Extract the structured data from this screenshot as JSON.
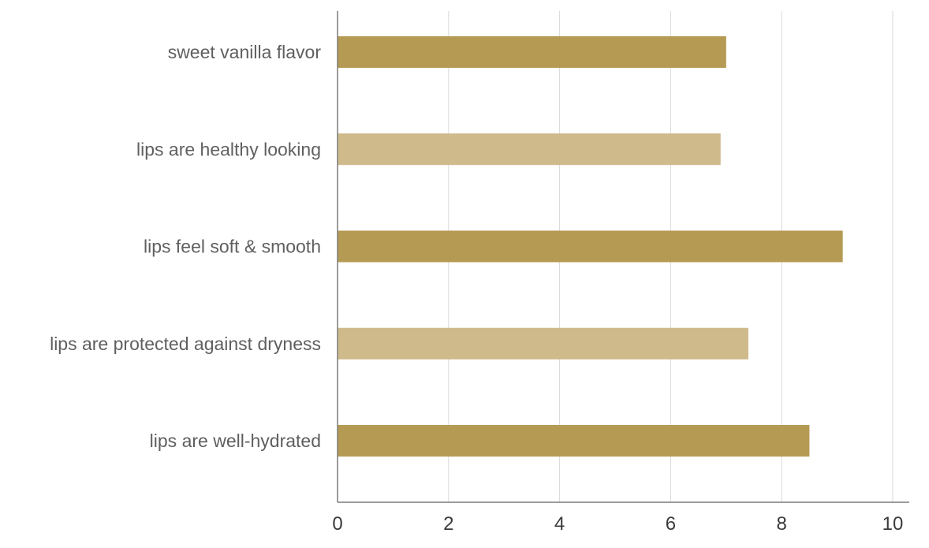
{
  "chart_data": {
    "type": "bar",
    "orientation": "horizontal",
    "title": "",
    "xlabel": "",
    "ylabel": "",
    "categories": [
      "sweet vanilla flavor",
      "lips are healthy looking",
      "lips feel soft & smooth",
      "lips are protected against dryness",
      "lips are well-hydrated"
    ],
    "values": [
      7.0,
      6.9,
      9.1,
      7.4,
      8.5
    ],
    "bar_colors": [
      "#b59a53",
      "#cfba8b",
      "#b59a53",
      "#cfba8b",
      "#b59a53"
    ],
    "xlim": [
      0,
      10
    ],
    "xticks": [
      "0",
      "2",
      "4",
      "6",
      "8",
      "10"
    ],
    "grid": true,
    "legend": "none"
  }
}
